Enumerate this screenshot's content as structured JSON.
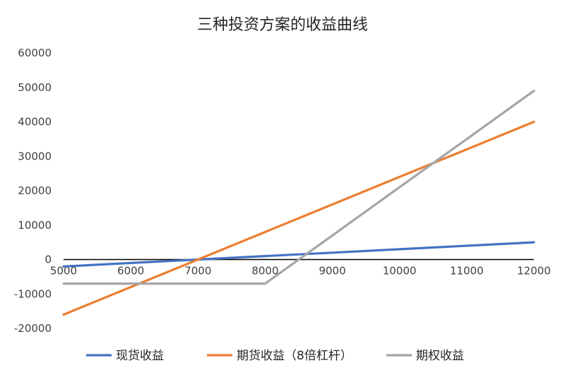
{
  "chart_data": {
    "type": "line",
    "title": "三种投资方案的收益曲线",
    "xlabel": "",
    "ylabel": "",
    "xlim": [
      5000,
      12000
    ],
    "ylim": [
      -20000,
      60000
    ],
    "x_ticks": [
      "5000",
      "6000",
      "7000",
      "8000",
      "9000",
      "10000",
      "11000",
      "12000"
    ],
    "y_ticks": [
      "60000",
      "50000",
      "40000",
      "30000",
      "20000",
      "10000",
      "0",
      "-10000",
      "-20000"
    ],
    "grid": false,
    "legend_position": "bottom",
    "x": [
      5000,
      6000,
      7000,
      8000,
      9000,
      10000,
      11000,
      12000
    ],
    "series": [
      {
        "name": "现货收益",
        "color": "#4472C4",
        "values": [
          -2000,
          -1000,
          0,
          1000,
          2000,
          3000,
          4000,
          5000
        ]
      },
      {
        "name": "期货收益（8倍杠杆）",
        "color": "#ED7D31",
        "values": [
          -16000,
          -8000,
          0,
          8000,
          16000,
          24000,
          32000,
          40000
        ]
      },
      {
        "name": "期权收益",
        "color": "#A5A5A5",
        "values": [
          -7000,
          -7000,
          -7000,
          -7000,
          7000,
          21000,
          35000,
          49000
        ]
      }
    ]
  }
}
